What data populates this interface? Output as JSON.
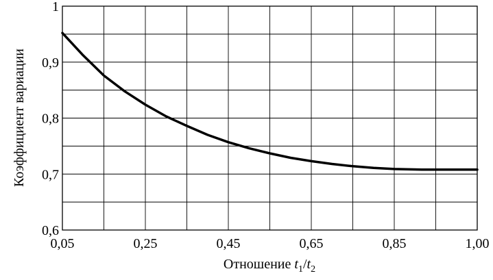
{
  "chart_data": {
    "type": "line",
    "x_ticks": [
      "0,05",
      "0,25",
      "0,45",
      "0,65",
      "0,85",
      "1,00"
    ],
    "y_ticks": [
      "0,6",
      "0,7",
      "0,8",
      "0,9",
      "1"
    ],
    "xlabel": {
      "text": "Отношение ",
      "var1": "t",
      "sub1": "1",
      "slash": "/",
      "var2": "t",
      "sub2": "2"
    },
    "ylabel": "Коэффициент вариации",
    "ylim": [
      0.6,
      1.0
    ],
    "grid": true,
    "series": [
      {
        "color": "#000000",
        "x": [
          0.05,
          0.1,
          0.15,
          0.2,
          0.25,
          0.3,
          0.35,
          0.4,
          0.45,
          0.5,
          0.55,
          0.6,
          0.65,
          0.7,
          0.75,
          0.8,
          0.85,
          0.9,
          0.95,
          1.0
        ],
        "y": [
          0.952,
          0.912,
          0.876,
          0.848,
          0.824,
          0.803,
          0.786,
          0.77,
          0.757,
          0.746,
          0.737,
          0.729,
          0.723,
          0.718,
          0.714,
          0.711,
          0.709,
          0.708,
          0.708,
          0.708
        ]
      }
    ]
  }
}
